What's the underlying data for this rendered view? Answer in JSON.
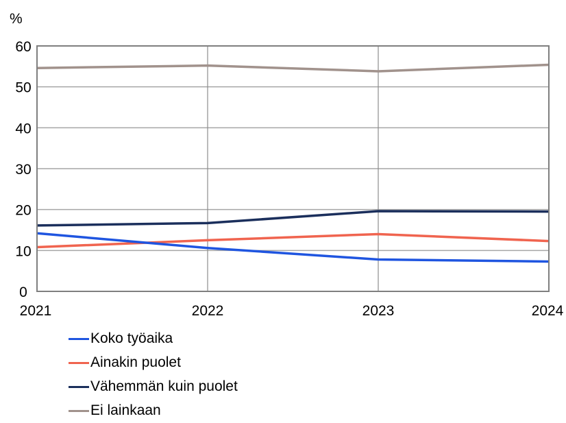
{
  "chart_data": {
    "type": "line",
    "title": "",
    "xlabel": "",
    "ylabel": "%",
    "ylim": [
      0,
      60
    ],
    "yticks": [
      0,
      10,
      20,
      30,
      40,
      50,
      60
    ],
    "x": [
      "2021",
      "2022",
      "2023",
      "2024"
    ],
    "grid": true,
    "legend_position": "bottom-left",
    "series": [
      {
        "name": "Koko työaika",
        "color": "#1f55e0",
        "values": [
          14.2,
          10.6,
          7.8,
          7.3
        ]
      },
      {
        "name": "Ainakin puolet",
        "color": "#f0644f",
        "values": [
          10.8,
          12.5,
          14.0,
          12.3
        ]
      },
      {
        "name": "Vähemmän kuin puolet",
        "color": "#1b2f5c",
        "values": [
          16.1,
          16.7,
          19.6,
          19.5
        ]
      },
      {
        "name": "Ei lainkaan",
        "color": "#a1928c",
        "values": [
          54.6,
          55.2,
          53.8,
          55.4
        ]
      }
    ]
  },
  "labels": {
    "y_unit": "%"
  },
  "legend": [
    {
      "label": "Koko työaika",
      "color": "#1f55e0"
    },
    {
      "label": "Ainakin puolet",
      "color": "#f0644f"
    },
    {
      "label": "Vähemmän kuin puolet",
      "color": "#1b2f5c"
    },
    {
      "label": "Ei lainkaan",
      "color": "#a1928c"
    }
  ]
}
